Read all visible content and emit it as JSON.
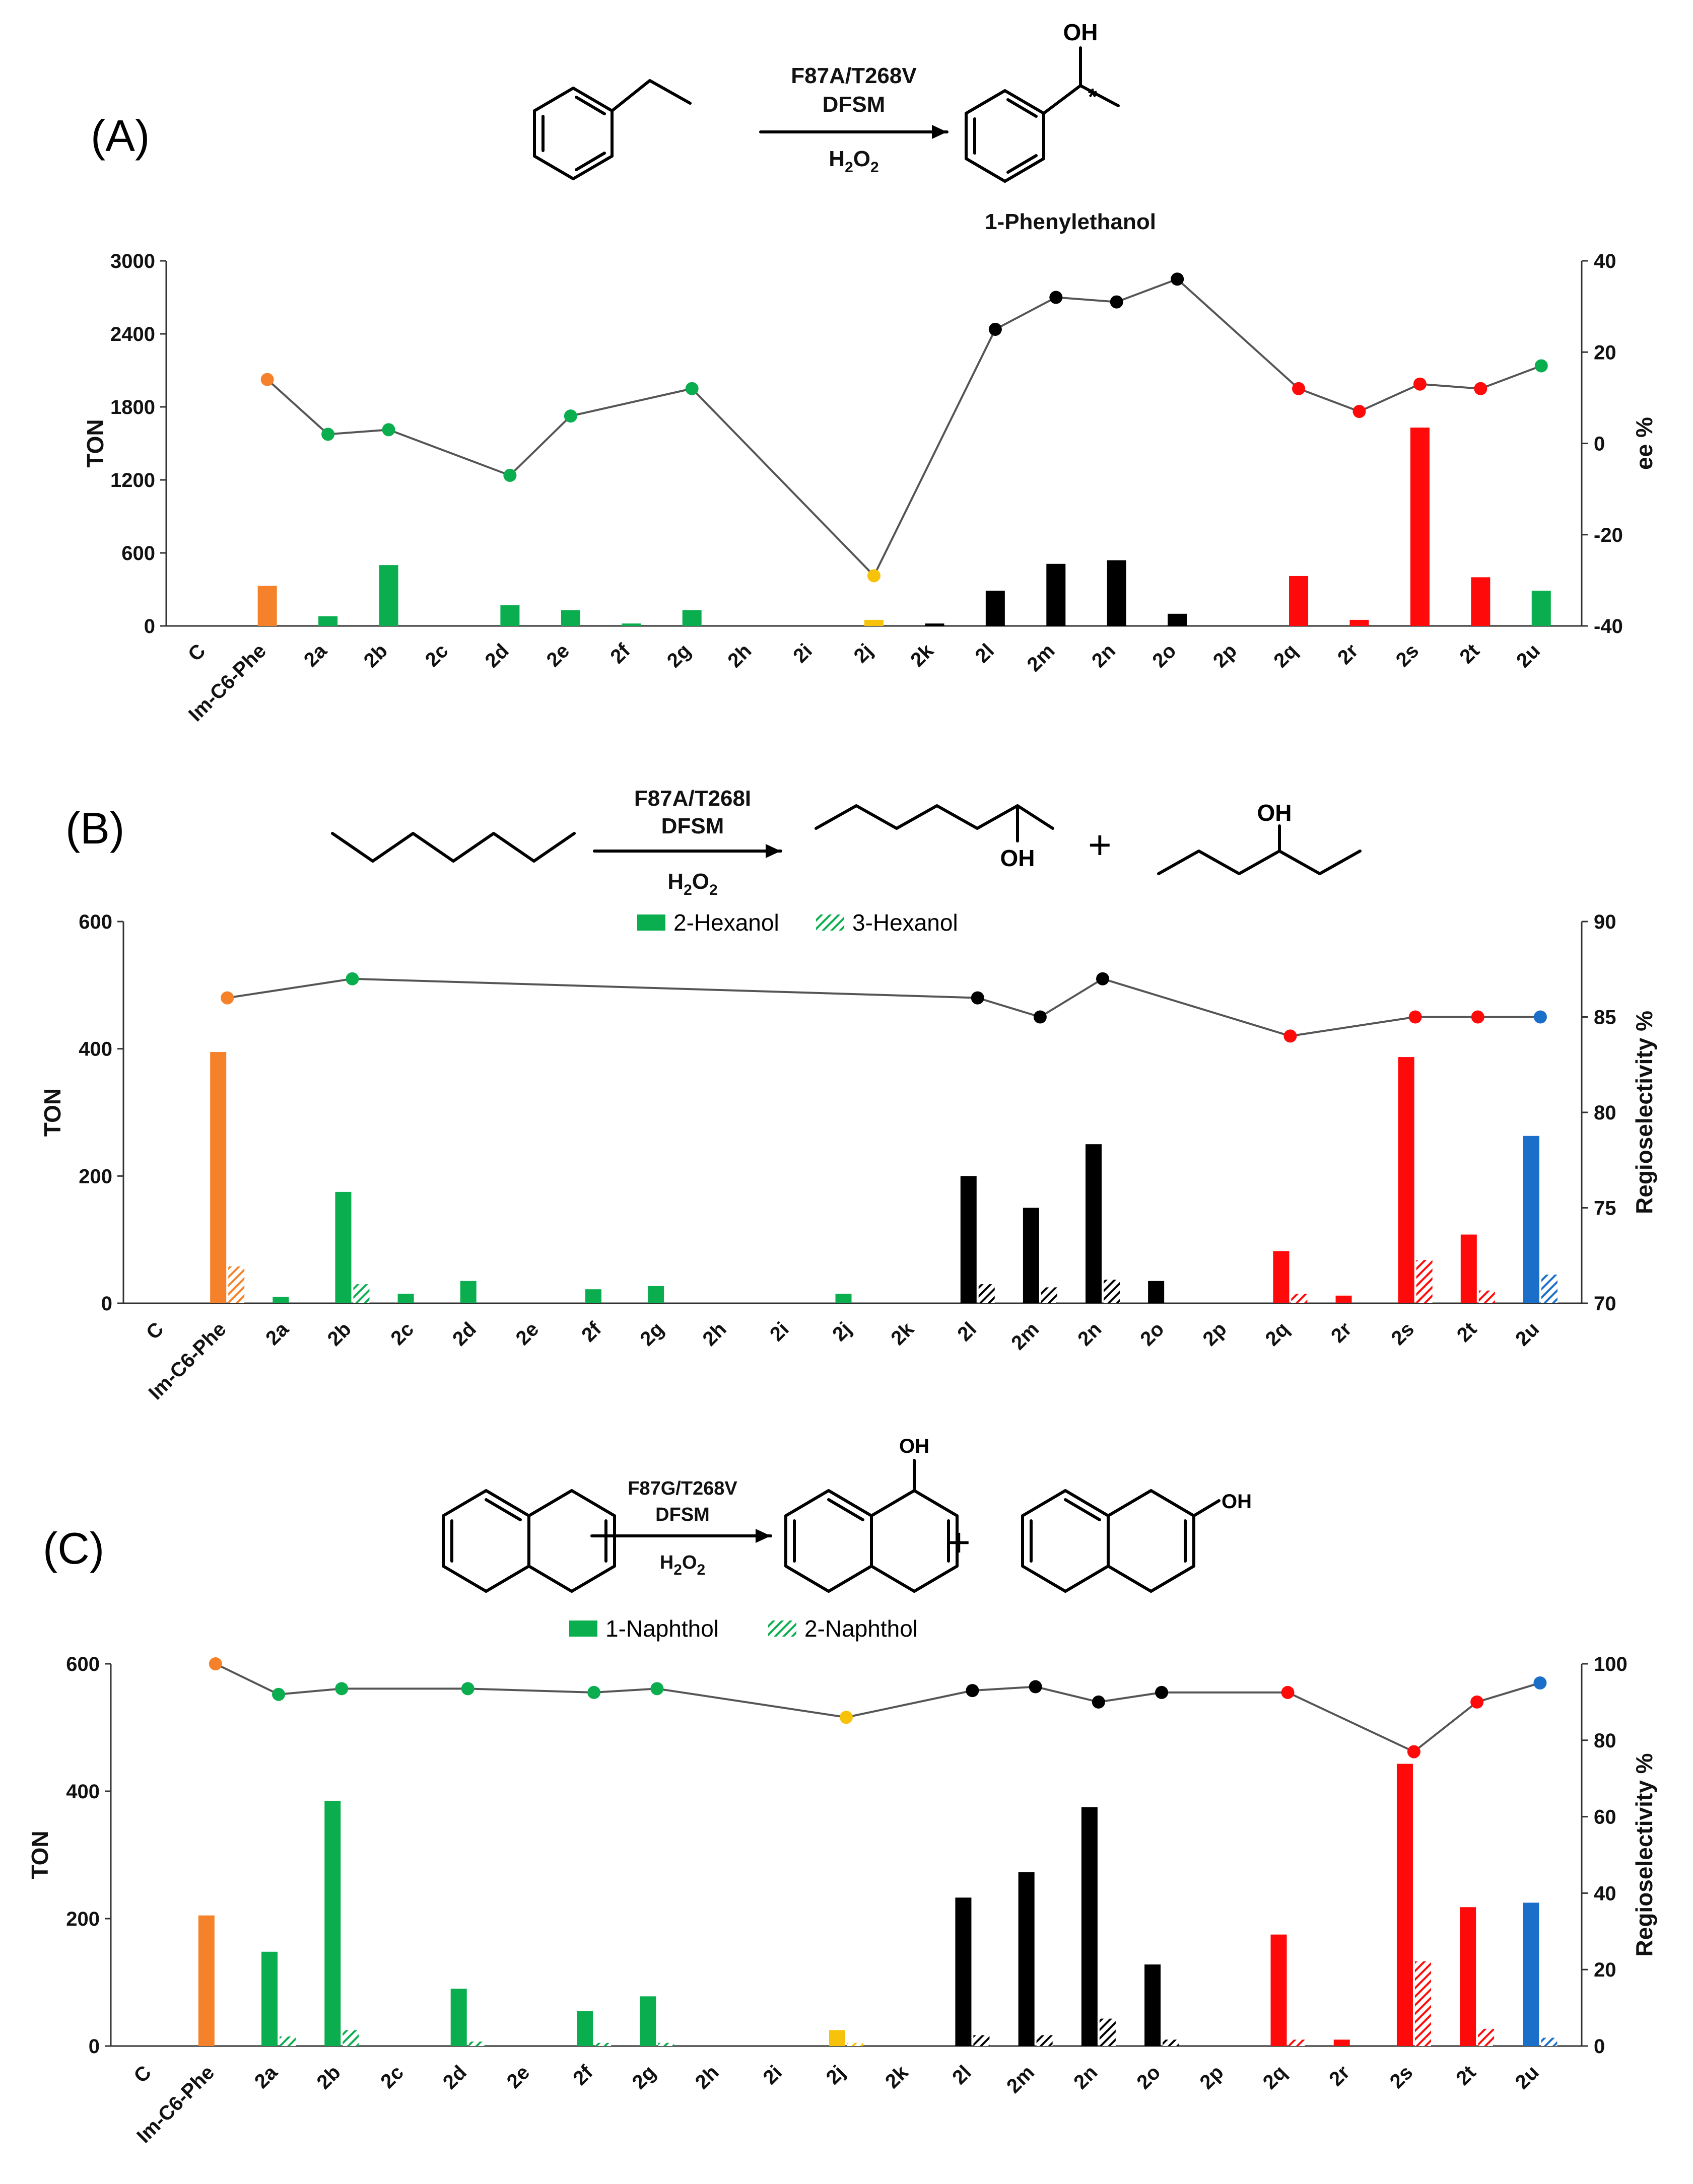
{
  "colors": {
    "orange": "#F5822A",
    "green": "#0BAE4E",
    "yellow": "#F7C20A",
    "black": "#000000",
    "red": "#FF0A0A",
    "blue": "#1B6FC9",
    "line": "#555555"
  },
  "panels": [
    {
      "label": "(A)",
      "reaction": {
        "enzyme": "F87A/T268V",
        "reagent": "DFSM",
        "oxidant": "H2O2",
        "product_name": "1-Phenylethanol",
        "oh_label": "OH",
        "stereo_mark": "*"
      }
    },
    {
      "label": "(B)",
      "reaction": {
        "enzyme": "F87A/T268I",
        "reagent": "DFSM",
        "oxidant": "H2O2",
        "oh_label_1": "OH",
        "oh_label_2": "OH",
        "plus": "+"
      }
    },
    {
      "label": "(C)",
      "reaction": {
        "enzyme": "F87G/T268V",
        "reagent": "DFSM",
        "oxidant": "H2O2",
        "oh_label_1": "OH",
        "oh_label_2": "OH",
        "plus": "+"
      }
    }
  ],
  "chart_data": [
    {
      "type": "bar",
      "categories": [
        "C",
        "Im-C6-Phe",
        "2a",
        "2b",
        "2c",
        "2d",
        "2e",
        "2f",
        "2g",
        "2h",
        "2i",
        "2j",
        "2k",
        "2l",
        "2m",
        "2n",
        "2o",
        "2p",
        "2q",
        "2r",
        "2s",
        "2t",
        "2u"
      ],
      "category_colors": [
        "black",
        "orange",
        "green",
        "green",
        "green",
        "green",
        "green",
        "green",
        "green",
        "green",
        "green",
        "yellow",
        "black",
        "black",
        "black",
        "black",
        "black",
        "red",
        "red",
        "red",
        "red",
        "red",
        "green"
      ],
      "series": [
        {
          "name": "TON",
          "values": [
            0,
            330,
            80,
            500,
            0,
            170,
            130,
            20,
            130,
            0,
            0,
            50,
            20,
            290,
            510,
            540,
            100,
            0,
            410,
            50,
            1630,
            400,
            290
          ]
        }
      ],
      "line_series": {
        "name": "ee %",
        "values": [
          null,
          14,
          2,
          3,
          null,
          -7,
          6,
          null,
          12,
          null,
          null,
          -29,
          null,
          25,
          32,
          31,
          36,
          null,
          12,
          7,
          13,
          12,
          17
        ]
      },
      "ylabel": "TON",
      "y2label": "ee %",
      "ylim": [
        0,
        3000
      ],
      "yticks": [
        "0",
        "600",
        "1200",
        "1800",
        "2400",
        "3000"
      ],
      "y2lim": [
        -40,
        40
      ],
      "y2ticks": [
        "-40",
        "-20",
        "0",
        "20",
        "40"
      ]
    },
    {
      "type": "bar",
      "categories": [
        "C",
        "Im-C6-Phe",
        "2a",
        "2b",
        "2c",
        "2d",
        "2e",
        "2f",
        "2g",
        "2h",
        "2i",
        "2j",
        "2k",
        "2l",
        "2m",
        "2n",
        "2o",
        "2p",
        "2q",
        "2r",
        "2s",
        "2t",
        "2u"
      ],
      "category_colors": [
        "black",
        "orange",
        "green",
        "green",
        "green",
        "green",
        "green",
        "green",
        "green",
        "green",
        "green",
        "green",
        "black",
        "black",
        "black",
        "black",
        "black",
        "red",
        "red",
        "red",
        "red",
        "red",
        "blue"
      ],
      "series": [
        {
          "name": "2-Hexanol",
          "values": [
            0,
            395,
            10,
            175,
            15,
            35,
            0,
            22,
            27,
            0,
            0,
            15,
            0,
            200,
            150,
            250,
            35,
            0,
            82,
            12,
            387,
            108,
            263
          ]
        },
        {
          "name": "3-Hexanol",
          "values": [
            0,
            58,
            0,
            30,
            0,
            0,
            0,
            0,
            0,
            0,
            0,
            0,
            0,
            30,
            25,
            37,
            0,
            0,
            15,
            0,
            68,
            20,
            45
          ]
        }
      ],
      "line_series": {
        "name": "Regioselectivity %",
        "values": [
          null,
          86,
          null,
          87,
          null,
          null,
          null,
          null,
          null,
          null,
          null,
          null,
          null,
          86,
          85,
          87,
          null,
          null,
          84,
          null,
          85,
          85,
          85
        ]
      },
      "legend": [
        "2-Hexanol",
        "3-Hexanol"
      ],
      "ylabel": "TON",
      "y2label": "Regioselectivity %",
      "ylim": [
        0,
        600
      ],
      "yticks": [
        "0",
        "200",
        "400",
        "600"
      ],
      "y2lim": [
        70,
        90
      ],
      "y2ticks": [
        "70",
        "75",
        "80",
        "85",
        "90"
      ]
    },
    {
      "type": "bar",
      "categories": [
        "C",
        "Im-C6-Phe",
        "2a",
        "2b",
        "2c",
        "2d",
        "2e",
        "2f",
        "2g",
        "2h",
        "2i",
        "2j",
        "2k",
        "2l",
        "2m",
        "2n",
        "2o",
        "2p",
        "2q",
        "2r",
        "2s",
        "2t",
        "2u"
      ],
      "category_colors": [
        "black",
        "orange",
        "green",
        "green",
        "green",
        "green",
        "green",
        "green",
        "green",
        "green",
        "green",
        "yellow",
        "black",
        "black",
        "black",
        "black",
        "black",
        "red",
        "red",
        "red",
        "red",
        "red",
        "blue"
      ],
      "series": [
        {
          "name": "1-Naphthol",
          "values": [
            0,
            205,
            148,
            385,
            0,
            90,
            0,
            55,
            78,
            0,
            0,
            25,
            0,
            233,
            273,
            375,
            128,
            0,
            175,
            10,
            443,
            218,
            225
          ]
        },
        {
          "name": "2-Naphthol",
          "values": [
            0,
            0,
            15,
            25,
            0,
            7,
            0,
            5,
            5,
            0,
            0,
            5,
            0,
            17,
            17,
            43,
            10,
            0,
            10,
            0,
            133,
            27,
            13
          ]
        }
      ],
      "line_series": {
        "name": "Regioselectivity %",
        "values": [
          null,
          100,
          92,
          93.5,
          null,
          93.5,
          null,
          92.5,
          93.5,
          null,
          null,
          86,
          null,
          93,
          94,
          90,
          92.5,
          null,
          92.5,
          null,
          77,
          90,
          95
        ]
      },
      "legend": [
        "1-Naphthol",
        "2-Naphthol"
      ],
      "ylabel": "TON",
      "y2label": "Regioselectivity %",
      "ylim": [
        0,
        600
      ],
      "yticks": [
        "0",
        "200",
        "400",
        "600"
      ],
      "y2lim": [
        0,
        100
      ],
      "y2ticks": [
        "0",
        "20",
        "40",
        "60",
        "80",
        "100"
      ]
    }
  ]
}
